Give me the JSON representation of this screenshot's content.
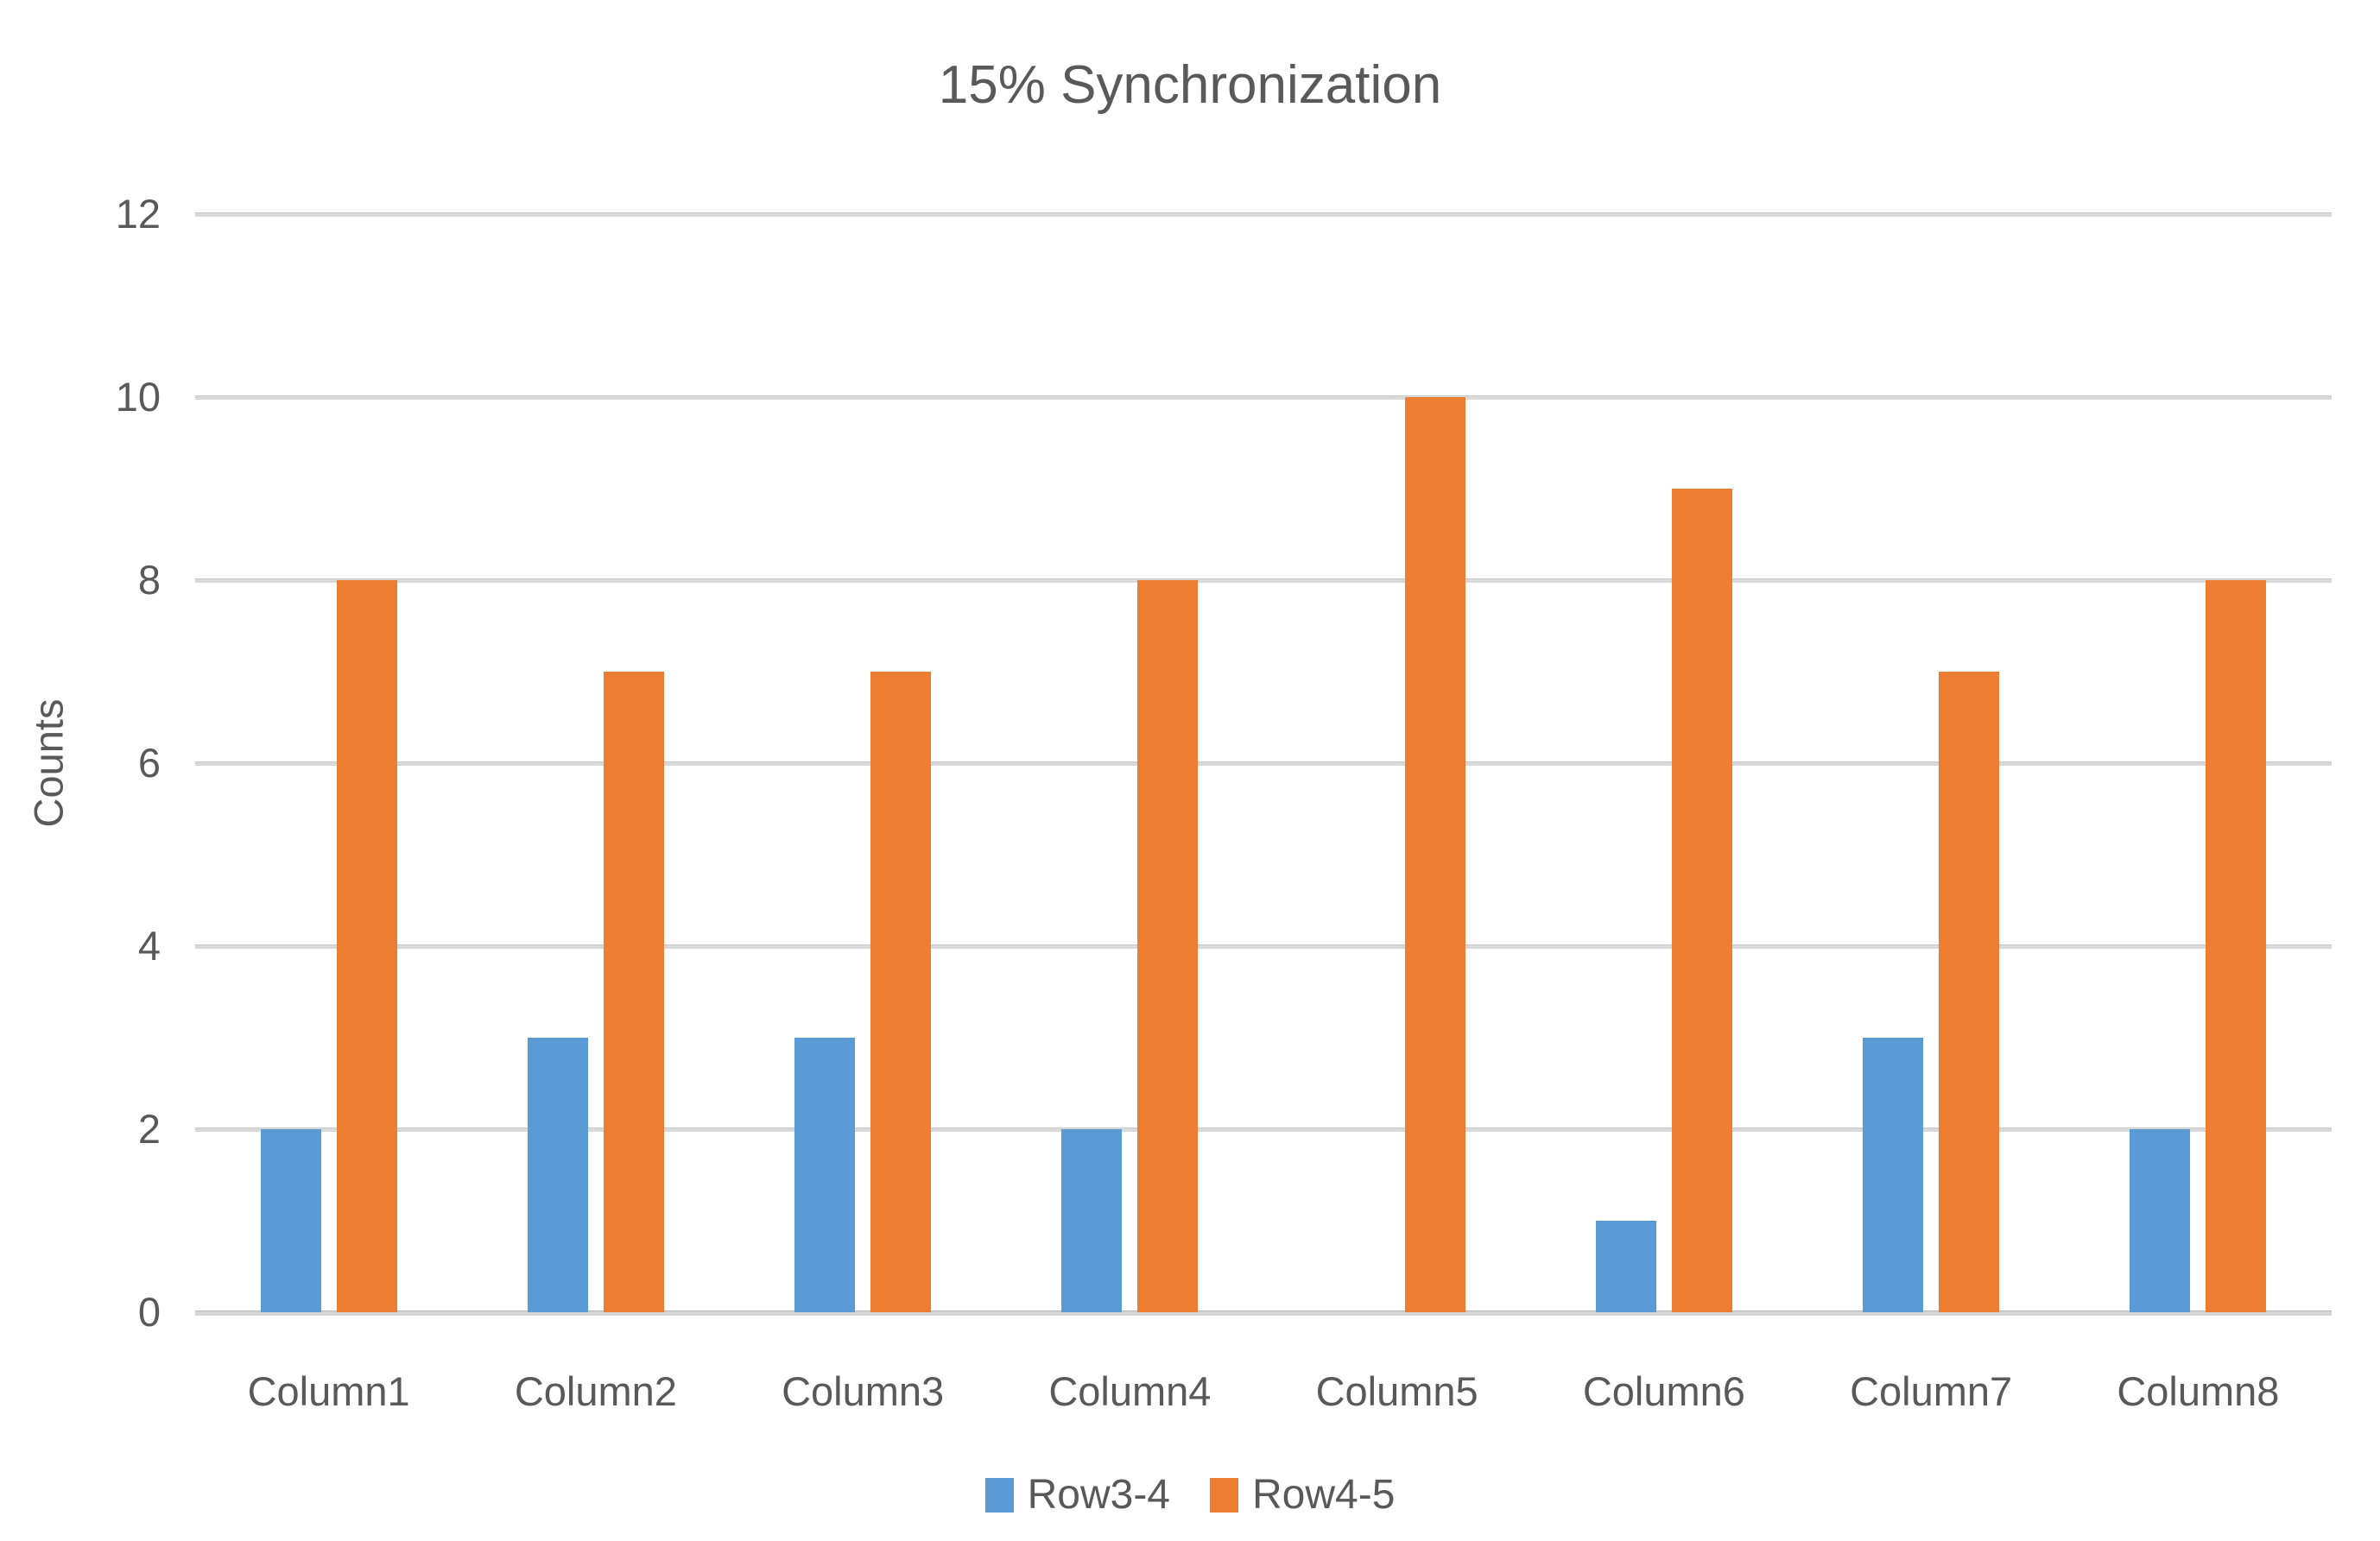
{
  "chart_data": {
    "type": "bar",
    "title": "15% Synchronization",
    "ylabel": "Counts",
    "categories": [
      "Column1",
      "Column2",
      "Column3",
      "Column4",
      "Column5",
      "Column6",
      "Column7",
      "Column8"
    ],
    "series": [
      {
        "name": "Row3-4",
        "color": "#5B9BD5",
        "values": [
          2,
          3,
          3,
          2,
          0,
          1,
          3,
          2
        ]
      },
      {
        "name": "Row4-5",
        "color": "#ED7D31",
        "values": [
          8,
          7,
          7,
          8,
          10,
          9,
          7,
          8
        ]
      }
    ],
    "ylim": [
      0,
      12
    ],
    "yticks": [
      0,
      2,
      4,
      6,
      8,
      10,
      12
    ],
    "grid": "horizontal",
    "legend_position": "bottom",
    "colors": {
      "text": "#595959",
      "gridline": "#D9D9D9",
      "axis_line": "#BFBFBF",
      "background": "#FFFFFF"
    }
  }
}
